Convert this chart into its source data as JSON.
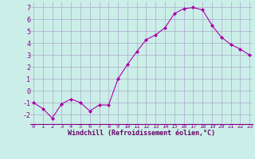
{
  "x": [
    0,
    1,
    2,
    3,
    4,
    5,
    6,
    7,
    8,
    9,
    10,
    11,
    12,
    13,
    14,
    15,
    16,
    17,
    18,
    19,
    20,
    21,
    22,
    23
  ],
  "y": [
    -1.0,
    -1.5,
    -2.3,
    -1.1,
    -0.7,
    -1.0,
    -1.7,
    -1.2,
    -1.2,
    1.0,
    2.2,
    3.3,
    4.3,
    4.7,
    5.3,
    6.5,
    6.9,
    7.0,
    6.8,
    5.5,
    4.5,
    3.9,
    3.5,
    3.0
  ],
  "line_color": "#aa00aa",
  "marker": "D",
  "marker_size": 2,
  "bg_color": "#cceee8",
  "grid_color": "#aaaacc",
  "xlabel": "Windchill (Refroidissement éolien,°C)",
  "xlabel_color": "#660066",
  "tick_color": "#880088",
  "ylim": [
    -2.8,
    7.5
  ],
  "xlim": [
    -0.3,
    23.3
  ],
  "yticks": [
    -2,
    -1,
    0,
    1,
    2,
    3,
    4,
    5,
    6,
    7
  ],
  "xticks": [
    0,
    1,
    2,
    3,
    4,
    5,
    6,
    7,
    8,
    9,
    10,
    11,
    12,
    13,
    14,
    15,
    16,
    17,
    18,
    19,
    20,
    21,
    22,
    23
  ],
  "fig_width": 3.2,
  "fig_height": 2.0,
  "dpi": 100
}
